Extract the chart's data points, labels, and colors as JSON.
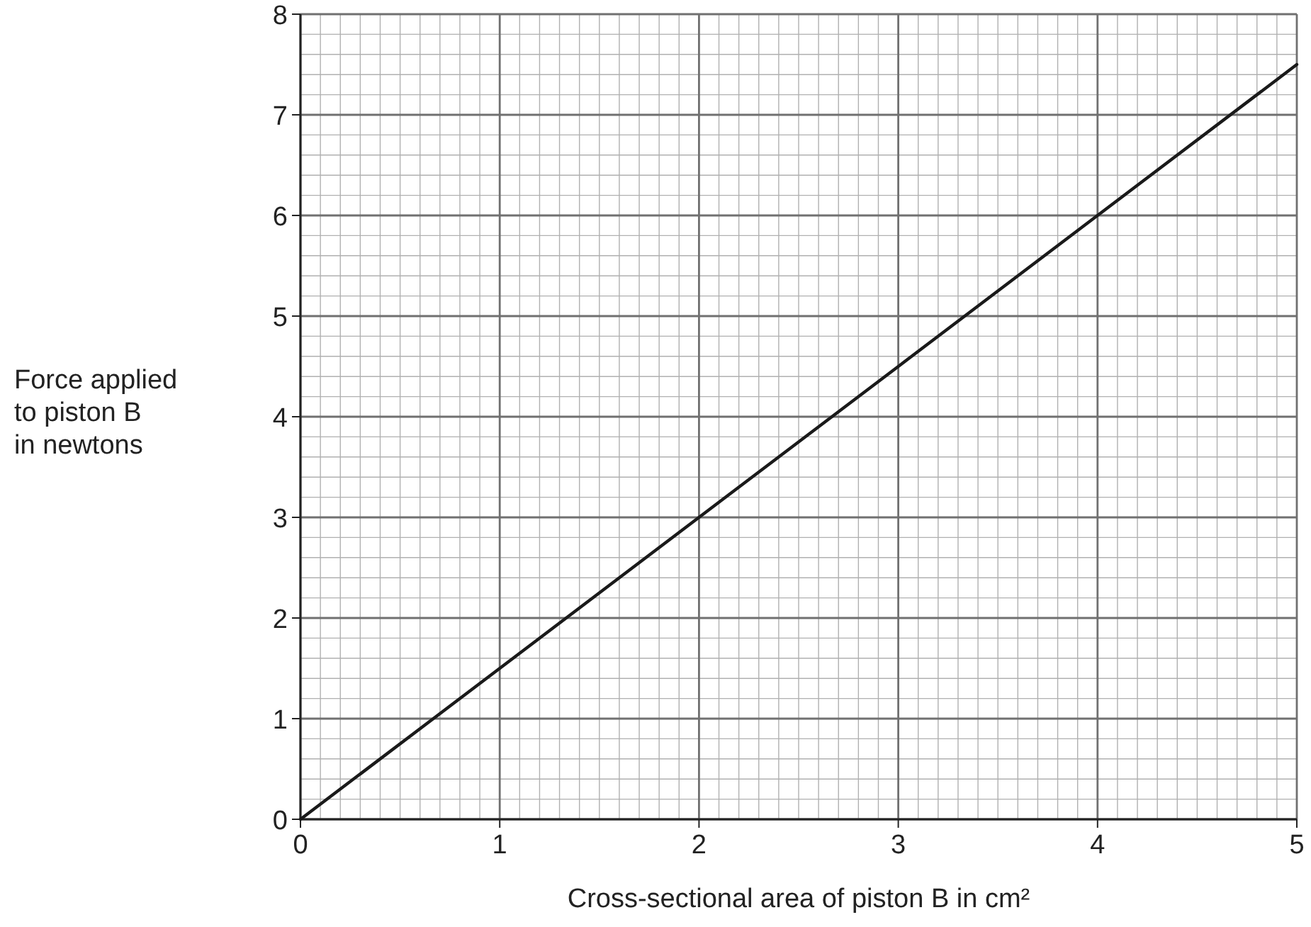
{
  "chart_data": {
    "type": "line",
    "xlabel": "Cross-sectional area of piston B in cm²",
    "ylabel": "Force applied\nto piston B\nin newtons",
    "x": [
      0,
      5
    ],
    "series": [
      {
        "color": "#1a1a1a",
        "values": [
          0,
          7.5
        ]
      }
    ],
    "xlim": [
      0,
      5
    ],
    "xticks": [
      0,
      1,
      2,
      3,
      4,
      5
    ],
    "ylim": [
      0,
      8
    ],
    "yticks": [
      0,
      1,
      2,
      3,
      4,
      5,
      6,
      7,
      8
    ],
    "grid": true,
    "marker": "none",
    "line_style": "solid"
  }
}
